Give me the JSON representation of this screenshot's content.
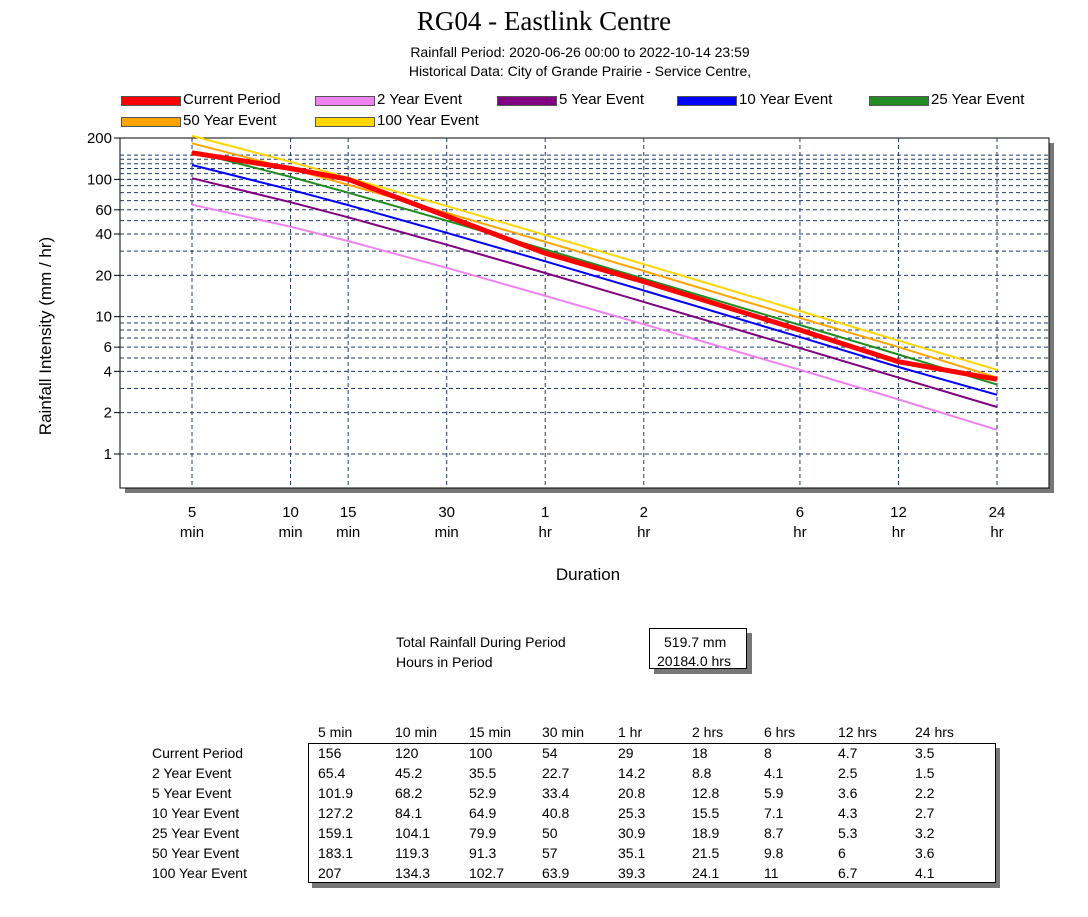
{
  "chart_data": {
    "type": "line",
    "title": "RG04 - Eastlink Centre",
    "subtitle_1": "Rainfall Period: 2020-06-26 00:00  to  2022-10-14 23:59",
    "subtitle_2": "Historical Data: City of Grande Prairie - Service Centre,",
    "xlabel": "Duration",
    "ylabel": "Rainfall Intensity (mm / hr)",
    "x_scale": "log",
    "y_scale": "log",
    "ylim": [
      0.5,
      200
    ],
    "x_minutes": [
      5,
      10,
      15,
      30,
      60,
      120,
      360,
      720,
      1440
    ],
    "x_tick_values": [
      "5",
      "10",
      "15",
      "30",
      "1",
      "2",
      "6",
      "12",
      "24"
    ],
    "x_tick_units": [
      "min",
      "min",
      "min",
      "min",
      "hr",
      "hr",
      "hr",
      "hr",
      "hr"
    ],
    "y_tick_values": [
      1,
      2,
      4,
      6,
      10,
      20,
      40,
      60,
      100,
      200
    ],
    "y_tick_labels": [
      "1",
      "2",
      "4",
      "6",
      "10",
      "20",
      "40",
      "60",
      "100",
      "200"
    ],
    "y_grid_values": [
      1,
      2,
      3,
      4,
      5,
      6,
      7,
      8,
      9,
      10,
      20,
      30,
      40,
      50,
      60,
      70,
      80,
      90,
      100,
      110,
      120,
      130,
      140,
      150
    ],
    "series": [
      {
        "name": "Current Period",
        "color": "#ff0000",
        "values": [
          156,
          120,
          100,
          54,
          29,
          18,
          8,
          4.7,
          3.5
        ]
      },
      {
        "name": "2 Year Event",
        "color": "#ee82ee",
        "values": [
          65.4,
          45.2,
          35.5,
          22.7,
          14.2,
          8.8,
          4.1,
          2.5,
          1.5
        ]
      },
      {
        "name": "5 Year Event",
        "color": "#800080",
        "values": [
          101.9,
          68.2,
          52.9,
          33.4,
          20.8,
          12.8,
          5.9,
          3.6,
          2.2
        ]
      },
      {
        "name": "10 Year Event",
        "color": "#0000ff",
        "values": [
          127.2,
          84.1,
          64.9,
          40.8,
          25.3,
          15.5,
          7.1,
          4.3,
          2.7
        ]
      },
      {
        "name": "25 Year Event",
        "color": "#228b22",
        "values": [
          159.1,
          104.1,
          79.9,
          50,
          30.9,
          18.9,
          8.7,
          5.3,
          3.2
        ]
      },
      {
        "name": "50 Year Event",
        "color": "#ffa500",
        "values": [
          183.1,
          119.3,
          91.3,
          57,
          35.1,
          21.5,
          9.8,
          6,
          3.6
        ]
      },
      {
        "name": "100 Year Event",
        "color": "#ffd700",
        "values": [
          207,
          134.3,
          102.7,
          63.9,
          39.3,
          24.1,
          11,
          6.7,
          4.1
        ]
      }
    ]
  },
  "summary": {
    "total_label": "Total Rainfall During Period",
    "total_value": "519.7 mm",
    "hours_label": "Hours in Period",
    "hours_value": "20184.0 hrs"
  },
  "table": {
    "headers": [
      "5 min",
      "10 min",
      "15 min",
      "30 min",
      "1 hr",
      "2 hrs",
      "6 hrs",
      "12 hrs",
      "24 hrs"
    ],
    "rows": [
      {
        "label": "Current Period",
        "cells": [
          "156",
          "120",
          "100",
          "54",
          "29",
          "18",
          "8",
          "4.7",
          "3.5"
        ]
      },
      {
        "label": "2 Year Event",
        "cells": [
          "65.4",
          "45.2",
          "35.5",
          "22.7",
          "14.2",
          "8.8",
          "4.1",
          "2.5",
          "1.5"
        ]
      },
      {
        "label": "5 Year Event",
        "cells": [
          "101.9",
          "68.2",
          "52.9",
          "33.4",
          "20.8",
          "12.8",
          "5.9",
          "3.6",
          "2.2"
        ]
      },
      {
        "label": "10 Year Event",
        "cells": [
          "127.2",
          "84.1",
          "64.9",
          "40.8",
          "25.3",
          "15.5",
          "7.1",
          "4.3",
          "2.7"
        ]
      },
      {
        "label": "25 Year Event",
        "cells": [
          "159.1",
          "104.1",
          "79.9",
          "50",
          "30.9",
          "18.9",
          "8.7",
          "5.3",
          "3.2"
        ]
      },
      {
        "label": "50 Year Event",
        "cells": [
          "183.1",
          "119.3",
          "91.3",
          "57",
          "35.1",
          "21.5",
          "9.8",
          "6",
          "3.6"
        ]
      },
      {
        "label": "100 Year Event",
        "cells": [
          "207",
          "134.3",
          "102.7",
          "63.9",
          "39.3",
          "24.1",
          "11",
          "6.7",
          "4.1"
        ]
      }
    ]
  }
}
